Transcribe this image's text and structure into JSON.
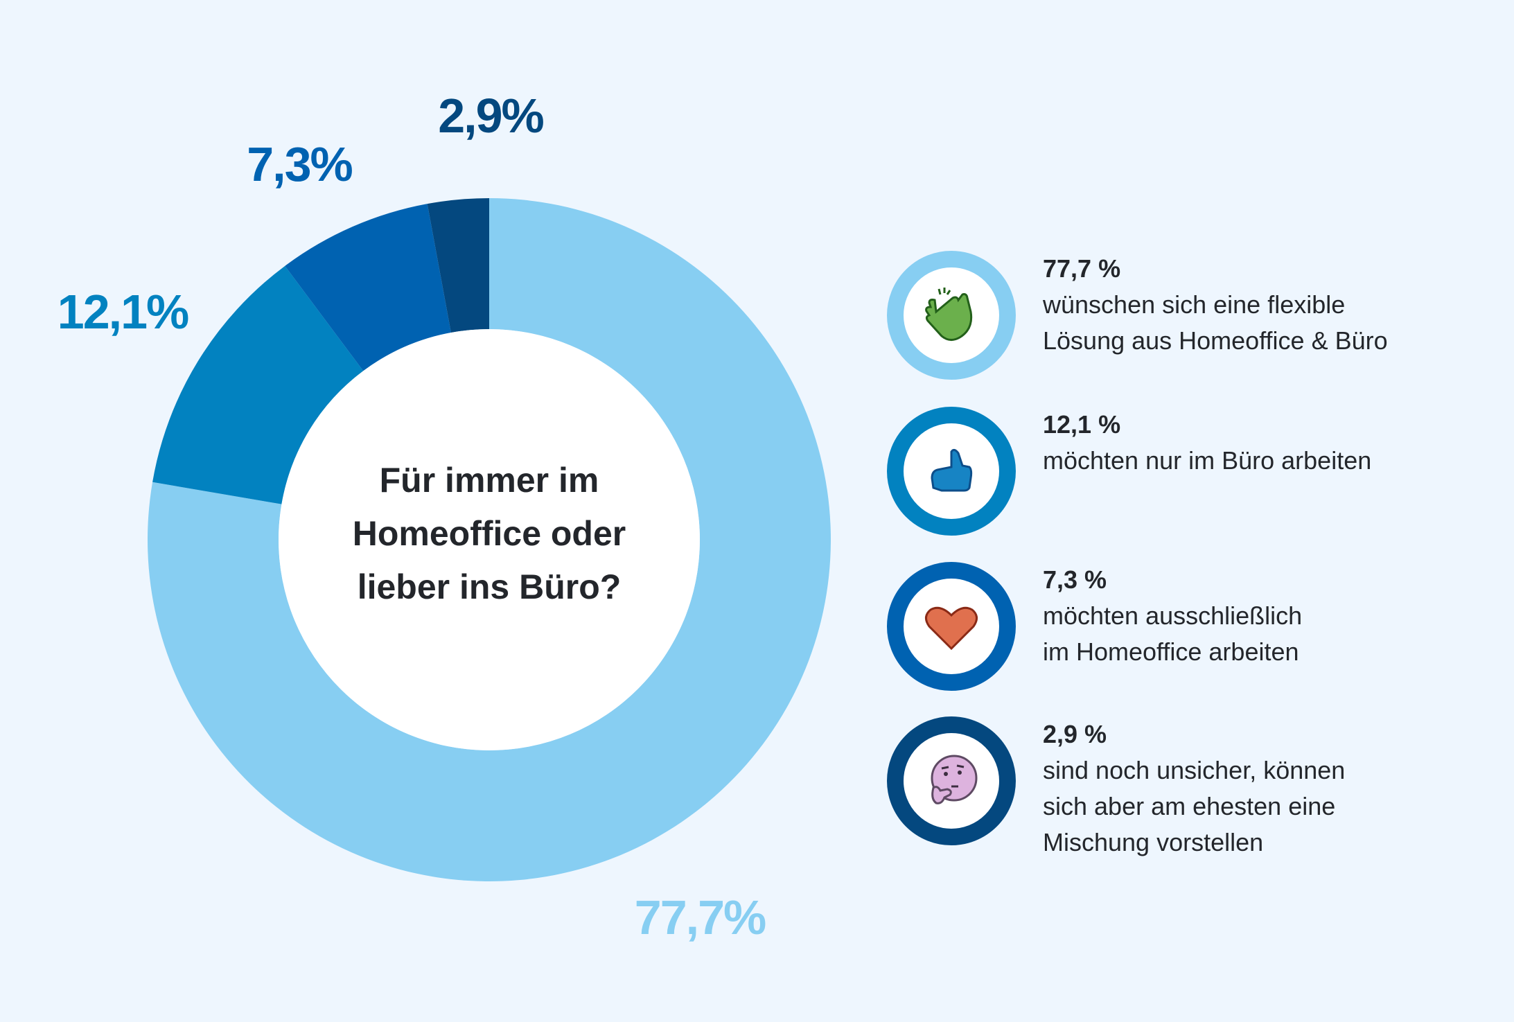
{
  "chart_data": {
    "type": "pie",
    "donut": true,
    "title": "Für immer im Homeoffice oder lieber ins Büro?",
    "categories": [
      "wünschen sich eine flexible Lösung aus Homeoffice & Büro",
      "möchten nur im Büro arbeiten",
      "möchten ausschließlich im Homeoffice arbeiten",
      "sind noch unsicher, können sich aber am ehesten eine Mischung vorstellen"
    ],
    "values": [
      77.7,
      12.1,
      7.3,
      2.9
    ],
    "unit": "%",
    "data_labels": [
      "77,7%",
      "12,1%",
      "7,3%",
      "2,9%"
    ],
    "colors": [
      "#87CEF2",
      "#0282C0",
      "#0062B1",
      "#04487F"
    ],
    "start_angle": "top",
    "direction": "clockwise"
  },
  "center_title_lines": [
    "Für immer im",
    "Homeoffice oder",
    "lieber ins Büro?"
  ],
  "legend": [
    {
      "pct": "77,7 %",
      "lines": [
        "wünschen sich eine flexible",
        "Lösung aus Homeoffice & Büro"
      ],
      "icon": "clapping-hands-icon",
      "color": "#87CEF2"
    },
    {
      "pct": "12,1 %",
      "lines": [
        "möchten nur im Büro arbeiten"
      ],
      "icon": "thumbs-up-icon",
      "color": "#0282C0"
    },
    {
      "pct": "7,3 %",
      "lines": [
        "möchten ausschließlich",
        "im Homeoffice arbeiten"
      ],
      "icon": "heart-icon",
      "color": "#0062B1"
    },
    {
      "pct": "2,9 %",
      "lines": [
        "sind noch unsicher, können",
        "sich aber am ehesten eine",
        "Mischung vorstellen"
      ],
      "icon": "thinking-face-icon",
      "color": "#04487F"
    }
  ]
}
